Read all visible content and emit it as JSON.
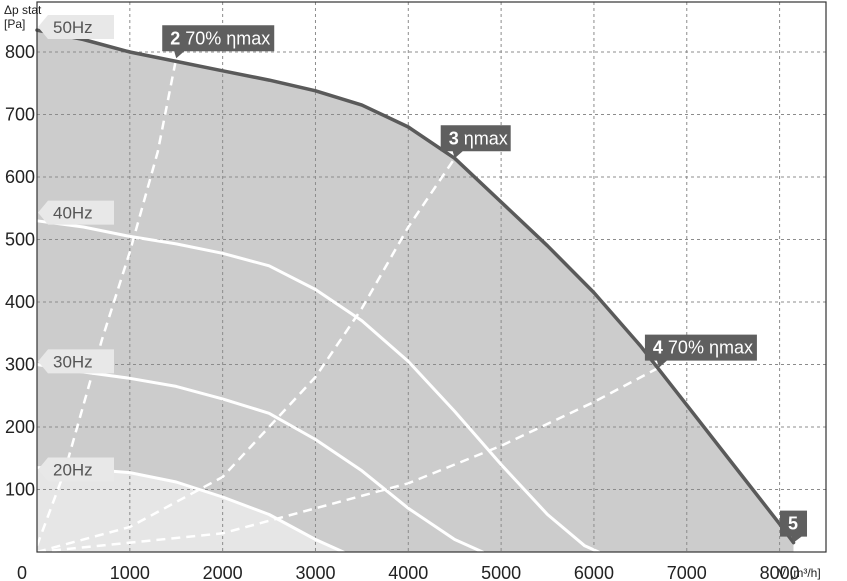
{
  "chart_data": {
    "type": "line",
    "xlabel": "V̇",
    "xunit": "[m³/h]",
    "ylabel": "Δp stat",
    "yunit": "[Pa]",
    "xlim": [
      0,
      8500
    ],
    "ylim": [
      0,
      880
    ],
    "x_ticks": [
      0,
      1000,
      2000,
      3000,
      4000,
      5000,
      6000,
      7000,
      8000
    ],
    "x_tick_labels": [
      "0",
      "1000",
      "2000",
      "3000",
      "4000",
      "5000",
      "6000",
      "7000",
      "8000"
    ],
    "y_ticks": [
      100,
      200,
      300,
      400,
      500,
      600,
      700,
      800
    ],
    "y_tick_labels": [
      "100",
      "200",
      "300",
      "400",
      "500",
      "600",
      "700",
      "800"
    ],
    "grid": true,
    "series": [
      {
        "name": "50Hz",
        "style": "boundary",
        "x": [
          0,
          500,
          1000,
          1500,
          2000,
          2500,
          3000,
          3500,
          4000,
          4500,
          5000,
          5500,
          6000,
          6500,
          7000,
          7500,
          8000,
          8150
        ],
        "y": [
          835,
          820,
          800,
          785,
          770,
          755,
          738,
          715,
          680,
          630,
          560,
          490,
          415,
          330,
          235,
          140,
          45,
          15
        ]
      },
      {
        "name": "40Hz",
        "style": "solid",
        "x": [
          0,
          500,
          1000,
          1500,
          2000,
          2500,
          3000,
          3500,
          4000,
          4500,
          5000,
          5500,
          5900,
          6050
        ],
        "y": [
          530,
          520,
          505,
          493,
          478,
          458,
          420,
          370,
          305,
          225,
          140,
          60,
          10,
          0
        ]
      },
      {
        "name": "30Hz",
        "style": "solid",
        "x": [
          0,
          500,
          1000,
          1500,
          2000,
          2500,
          3000,
          3500,
          4000,
          4500,
          4800
        ],
        "y": [
          300,
          288,
          278,
          265,
          245,
          222,
          180,
          130,
          70,
          20,
          0
        ]
      },
      {
        "name": "20Hz",
        "style": "solid",
        "x": [
          0,
          500,
          1000,
          1500,
          2000,
          2500,
          3000,
          3300
        ],
        "y": [
          135,
          133,
          127,
          112,
          88,
          60,
          20,
          0
        ]
      },
      {
        "name": "2 70% ηmax",
        "style": "dashed",
        "x": [
          0,
          300,
          700,
          1000,
          1300,
          1500
        ],
        "y": [
          10,
          130,
          340,
          480,
          640,
          790
        ]
      },
      {
        "name": "3 ηmax",
        "style": "dashed",
        "x": [
          0,
          1000,
          2000,
          3000,
          3500,
          4000,
          4500
        ],
        "y": [
          0,
          40,
          120,
          280,
          390,
          520,
          630
        ]
      },
      {
        "name": "4 70% ηmax",
        "style": "dashed",
        "x": [
          0,
          2000,
          4000,
          5000,
          6000,
          6700
        ],
        "y": [
          0,
          30,
          110,
          170,
          240,
          295
        ]
      }
    ],
    "hz_labels": [
      {
        "text": "50Hz",
        "y": 840
      },
      {
        "text": "40Hz",
        "y": 543
      },
      {
        "text": "30Hz",
        "y": 305
      },
      {
        "text": "20Hz",
        "y": 132
      }
    ],
    "markers": [
      {
        "num": "2",
        "text": "70% ηmax",
        "x": 1500,
        "y": 790
      },
      {
        "num": "3",
        "text": "ηmax",
        "x": 4500,
        "y": 630
      },
      {
        "num": "4",
        "text": "70% ηmax",
        "x": 6700,
        "y": 295
      },
      {
        "num": "5",
        "text": "",
        "x": 8150,
        "y": 15
      }
    ],
    "colors": {
      "plot_background": "#ffffff",
      "operating_area": "#cccccc",
      "area_20hz": "#e6e6e6",
      "boundary_line": "#5a5a5a",
      "speed_lines": "#ffffff",
      "grid": "#8c8c8c",
      "tag_background": "#5f5f5f",
      "hz_tag_background": "#e8e8e8"
    }
  }
}
